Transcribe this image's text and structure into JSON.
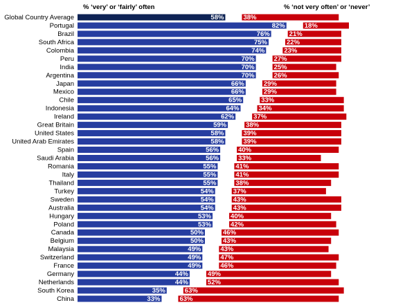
{
  "chart_data": {
    "type": "bar",
    "orientation": "horizontal",
    "headers": {
      "left": "% ‘very’ or ‘fairly’ often",
      "right": "% ‘not very often’ or ‘never’"
    },
    "categories": [
      "Global Country Average",
      "Portugal",
      "Brazil",
      "South Africa",
      "Colombia",
      "Peru",
      "India",
      "Argentina",
      "Japan",
      "Mexico",
      "Chile",
      "Indonesia",
      "Ireland",
      "Great Britain",
      "United States",
      "United Arab Emirates",
      "Spain",
      "Saudi Arabia",
      "Romania",
      "Italy",
      "Thailand",
      "Turkey",
      "Sweden",
      "Australia",
      "Hungary",
      "Poland",
      "Canada",
      "Belgium",
      "Malaysia",
      "Switzerland",
      "France",
      "Germany",
      "Netherlands",
      "South Korea",
      "China"
    ],
    "series": [
      {
        "values": [
          58,
          82,
          76,
          75,
          74,
          70,
          70,
          70,
          66,
          66,
          65,
          64,
          62,
          59,
          58,
          58,
          56,
          56,
          55,
          55,
          55,
          54,
          54,
          54,
          53,
          53,
          50,
          50,
          49,
          49,
          49,
          44,
          44,
          35,
          33
        ],
        "labels": [
          "58%",
          "82%",
          "76%",
          "75%",
          "74%",
          "70%",
          "70%",
          "70%",
          "66%",
          "66%",
          "65%",
          "64%",
          "62%",
          "59%",
          "58%",
          "58%",
          "56%",
          "56%",
          "55%",
          "55%",
          "55%",
          "54%",
          "54%",
          "54%",
          "53%",
          "53%",
          "50%",
          "50%",
          "49%",
          "49%",
          "49%",
          "44%",
          "44%",
          "35%",
          "33%"
        ]
      },
      {
        "values": [
          38,
          18,
          21,
          22,
          23,
          27,
          25,
          26,
          29,
          29,
          33,
          34,
          37,
          38,
          39,
          39,
          40,
          33,
          41,
          41,
          38,
          37,
          43,
          43,
          40,
          42,
          46,
          43,
          43,
          47,
          46,
          49,
          52,
          63,
          63
        ],
        "labels": [
          "38%",
          "18%",
          "21%",
          "22%",
          "23%",
          "27%",
          "25%",
          "26%",
          "29%",
          "29%",
          "33%",
          "34%",
          "37%",
          "38%",
          "39%",
          "39%",
          "40%",
          "33%",
          "41%",
          "41%",
          "38%",
          "37%",
          "43%",
          "43%",
          "40%",
          "42%",
          "46%",
          "43%",
          "43%",
          "47%",
          "46%",
          "49%",
          "52%",
          "63%",
          "63%"
        ]
      }
    ],
    "xlim": [
      0,
      100
    ],
    "grid": false,
    "colors": {
      "highlight": "#0e2355",
      "left": "#263da0",
      "right": "#c8000a"
    }
  }
}
